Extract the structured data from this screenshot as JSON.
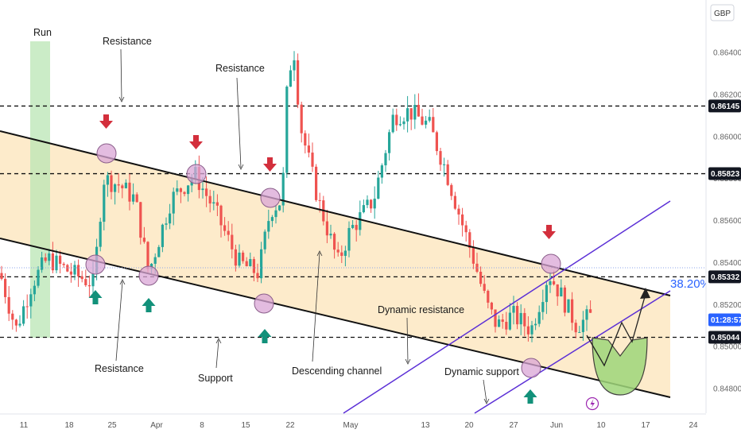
{
  "chart_data": {
    "type": "candlestick",
    "currency": "GBP",
    "price_axis": {
      "range": [
        0.8467,
        0.8662
      ],
      "ticks": [
        "0.86400",
        "0.86200",
        "0.86000",
        "0.85800",
        "0.85600",
        "0.85400",
        "0.85200",
        "0.85000",
        "0.84800"
      ]
    },
    "level_tags": [
      {
        "value": "0.86145",
        "style": "dark"
      },
      {
        "value": "0.85823",
        "style": "dark"
      },
      {
        "value": "0.85332",
        "style": "dark"
      },
      {
        "value": "0.85044",
        "style": "dark"
      },
      {
        "value": "01:28:57",
        "style": "blue"
      }
    ],
    "horizontal_levels": [
      0.86145,
      0.85823,
      0.85332,
      0.85044
    ],
    "date_axis": [
      "11",
      "18",
      "25",
      "Apr",
      "8",
      "15",
      "22",
      "May",
      "13",
      "20",
      "27",
      "Jun",
      "10",
      "17",
      "24"
    ],
    "annotations": {
      "run": "Run",
      "resistance_top_left": "Resistance",
      "resistance_top_mid": "Resistance",
      "resistance_bottom": "Resistance",
      "support": "Support",
      "descending_channel": "Descending channel",
      "dynamic_resistance": "Dynamic resistance",
      "dynamic_support": "Dynamic support",
      "fib_level": "38.20%"
    },
    "colors": {
      "up": "#26a69a",
      "down": "#ef5350",
      "channel_fill": "#fde7c2",
      "run_zone": "#b9e6b4",
      "dynamic_lines": "#5b2fd6",
      "fib": "#2962ff",
      "touch_marker": "#d9a6d6",
      "down_arrow": "#d32f3c",
      "up_arrow": "#12917a",
      "projection": "#9fd67a"
    }
  }
}
